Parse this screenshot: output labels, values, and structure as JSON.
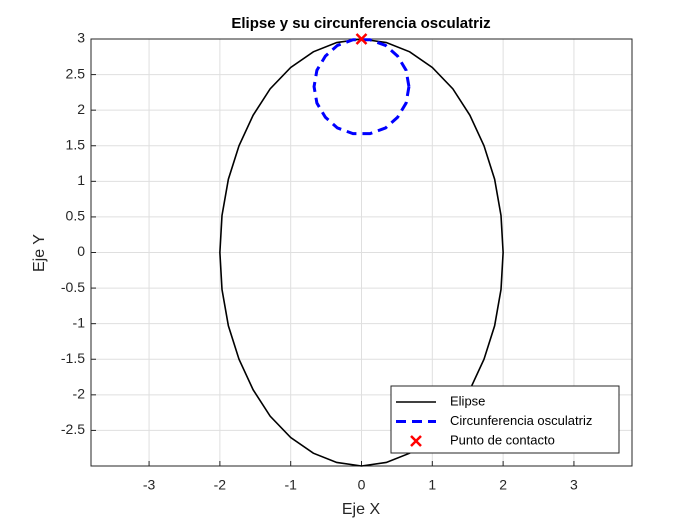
{
  "chart_data": {
    "type": "line",
    "title": "Elipse y su circunferencia osculatriz",
    "xlabel": "Eje X",
    "ylabel": "Eje Y",
    "xlim": [
      -3.82,
      3.82
    ],
    "ylim": [
      -3,
      3
    ],
    "xticks": [
      -3,
      -2,
      -1,
      0,
      1,
      2,
      3
    ],
    "yticks": [
      -2.5,
      -2,
      -1.5,
      -1,
      -0.5,
      0,
      0.5,
      1,
      1.5,
      2,
      2.5,
      3
    ],
    "grid": true,
    "legend": "southeast",
    "series": [
      {
        "name": "Elipse",
        "color": "#000000",
        "style": "solid",
        "marker": "none",
        "x": [
          2,
          1.97,
          1.88,
          1.73,
          1.53,
          1.29,
          1,
          0.68,
          0.35,
          0,
          -0.35,
          -0.68,
          -1,
          -1.29,
          -1.53,
          -1.73,
          -1.88,
          -1.97,
          -2,
          -1.97,
          -1.88,
          -1.73,
          -1.53,
          -1.29,
          -1,
          -0.68,
          -0.35,
          0,
          0.35,
          0.68,
          1,
          1.29,
          1.53,
          1.73,
          1.88,
          1.97,
          2
        ],
        "values": [
          0,
          0.52,
          1.03,
          1.5,
          1.93,
          2.3,
          2.6,
          2.82,
          2.95,
          3,
          2.95,
          2.82,
          2.6,
          2.3,
          1.93,
          1.5,
          1.03,
          0.52,
          0,
          -0.52,
          -1.03,
          -1.5,
          -1.93,
          -2.3,
          -2.6,
          -2.82,
          -2.95,
          -3,
          -2.95,
          -2.82,
          -2.6,
          -2.3,
          -1.93,
          -1.5,
          -1.03,
          -0.52,
          0
        ]
      },
      {
        "name": "Circunferencia osculatriz",
        "color": "#0000ff",
        "style": "dashed",
        "marker": "none",
        "x": [
          0.67,
          0.63,
          0.51,
          0.34,
          0.12,
          -0.12,
          -0.34,
          -0.51,
          -0.63,
          -0.67,
          -0.63,
          -0.51,
          -0.34,
          -0.12,
          0.12,
          0.34,
          0.51,
          0.63,
          0.67
        ],
        "values": [
          2.33,
          2.56,
          2.76,
          2.91,
          2.99,
          2.99,
          2.91,
          2.76,
          2.56,
          2.33,
          2.1,
          1.9,
          1.75,
          1.67,
          1.67,
          1.75,
          1.9,
          2.1,
          2.33
        ]
      },
      {
        "name": "Punto de contacto",
        "color": "#ff0000",
        "style": "none",
        "marker": "x",
        "x": [
          0
        ],
        "values": [
          3
        ]
      }
    ]
  }
}
